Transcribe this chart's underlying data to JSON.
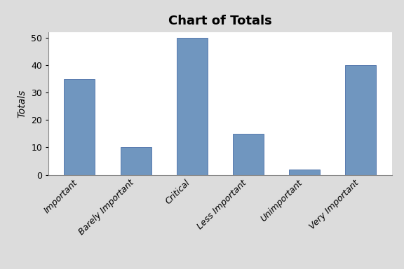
{
  "title": "Chart of Totals",
  "categories": [
    "Important",
    "Barely Important",
    "Critical",
    "Less Important",
    "Unimportant",
    "Very Important"
  ],
  "values": [
    35,
    10,
    50,
    15,
    2,
    40
  ],
  "bar_color": "#7096BF",
  "ylabel": "Totals",
  "ylim": [
    0,
    52
  ],
  "yticks": [
    0,
    10,
    20,
    30,
    40,
    50
  ],
  "background_color": "#DCDCDC",
  "plot_bg_color": "#FFFFFF",
  "title_fontsize": 13,
  "label_fontsize": 10,
  "tick_fontsize": 9,
  "bar_edge_color": "#4a6fa8",
  "bar_width": 0.55
}
